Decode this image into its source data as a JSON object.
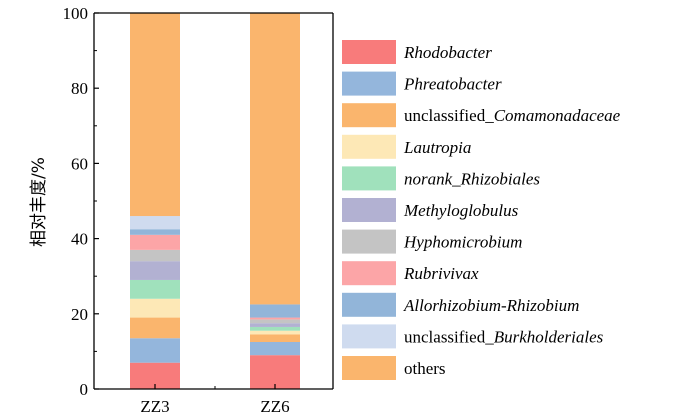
{
  "chart_data": {
    "type": "bar",
    "stacked": true,
    "title": "",
    "xlabel": "",
    "ylabel": "相对丰度/%",
    "ylim": [
      0,
      100
    ],
    "yticks": [
      0,
      20,
      40,
      60,
      80,
      100
    ],
    "categories": [
      "ZZ3",
      "ZZ6"
    ],
    "legend_position": "right",
    "series": [
      {
        "name_prefix": "",
        "name_italic": "Rhodobacter",
        "color": "#f87b7b",
        "values": [
          7.0,
          9.0
        ]
      },
      {
        "name_prefix": "",
        "name_italic": "Phreatobacter",
        "color": "#94b6dc",
        "values": [
          6.5,
          3.5
        ]
      },
      {
        "name_prefix": "unclassified_",
        "name_italic": "Comamonadaceae",
        "color": "#fab56d",
        "values": [
          5.5,
          2.0
        ]
      },
      {
        "name_prefix": "",
        "name_italic": "Lautropia",
        "color": "#fde8b6",
        "values": [
          5.0,
          1.0
        ]
      },
      {
        "name_prefix": "",
        "name_italic": "norank_Rhizobiales",
        "color": "#a0e1bc",
        "values": [
          5.0,
          1.0
        ]
      },
      {
        "name_prefix": "",
        "name_italic": "Methyloglobulus",
        "color": "#b2b1d2",
        "values": [
          5.0,
          1.0
        ]
      },
      {
        "name_prefix": "",
        "name_italic": "Hyphomicrobium",
        "color": "#c4c4c4",
        "values": [
          3.0,
          1.0
        ]
      },
      {
        "name_prefix": "",
        "name_italic": "Rubrivivax",
        "color": "#fca5a7",
        "values": [
          4.0,
          0.5
        ]
      },
      {
        "name_prefix": "",
        "name_italic": "Allorhizobium-Rhizobium",
        "color": "#92b5d9",
        "values": [
          1.5,
          3.5
        ]
      },
      {
        "name_prefix": "unclassified_",
        "name_italic": "Burkholderiales",
        "color": "#cfdbef",
        "values": [
          3.5,
          0.0
        ]
      },
      {
        "name_prefix": "others",
        "name_italic": "",
        "color": "#fab56d",
        "values": [
          54.0,
          77.5
        ]
      }
    ]
  }
}
